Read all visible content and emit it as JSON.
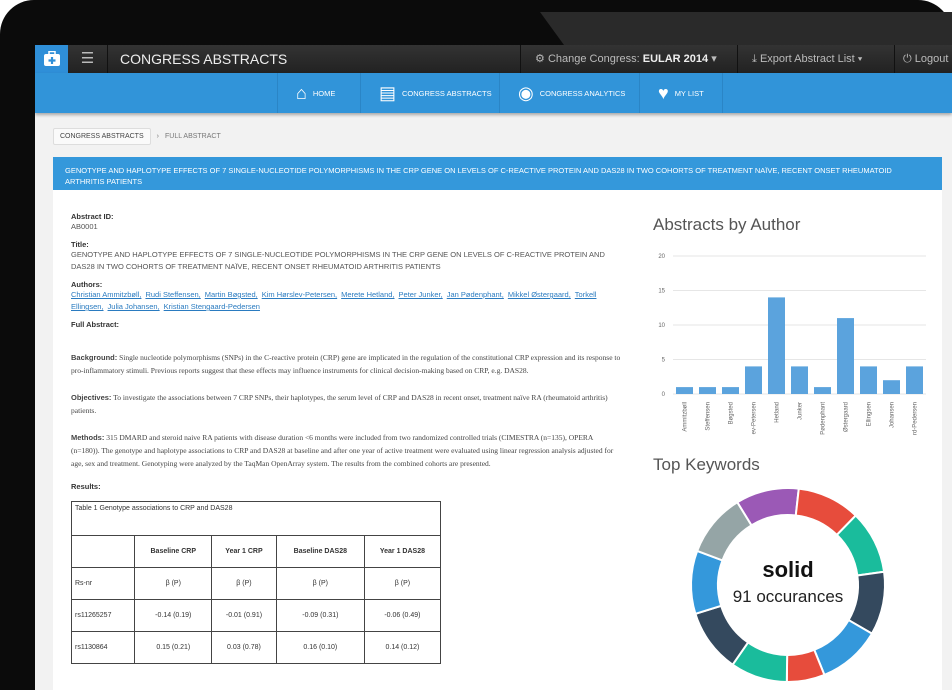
{
  "app": {
    "title": "CONGRESS ABSTRACTS",
    "change_congress_label": "Change Congress:",
    "congress": "EULAR 2014",
    "export": "Export Abstract List",
    "logout": "Logout"
  },
  "nav": [
    {
      "label": "HOME",
      "icon": "home-icon"
    },
    {
      "label": "CONGRESS ABSTRACTS",
      "icon": "document-icon"
    },
    {
      "label": "CONGRESS ANALYTICS",
      "icon": "dashboard-icon"
    },
    {
      "label": "MY LIST",
      "icon": "heart-icon"
    }
  ],
  "breadcrumb": [
    "CONGRESS ABSTRACTS",
    "FULL ABSTRACT"
  ],
  "abstract": {
    "heading": "GENOTYPE AND HAPLOTYPE EFFECTS OF 7 SINGLE-NUCLEOTIDE POLYMORPHISMS IN THE CRP GENE ON LEVELS OF C-REACTIVE PROTEIN AND DAS28 IN TWO COHORTS OF TREATMENT NAÏVE, RECENT ONSET RHEUMATOID ARTHRITIS PATIENTS",
    "id_label": "Abstract ID:",
    "id": "AB0001",
    "title_label": "Title:",
    "title": "GENOTYPE AND HAPLOTYPE EFFECTS OF 7 SINGLE-NUCLEOTIDE POLYMORPHISMS IN THE CRP GENE ON LEVELS OF C-REACTIVE PROTEIN AND DAS28 IN TWO COHORTS OF TREATMENT NAÏVE, RECENT ONSET RHEUMATOID ARTHRITIS PATIENTS",
    "authors_label": "Authors:",
    "authors": [
      "Christian Ammitzbøll,",
      "Rudi Steffensen,",
      "Martin Bøgsted,",
      "Kim Hørslev-Petersen,",
      "Merete Hetland,",
      "Peter Junker,",
      "Jan Pødenphant,",
      "Mikkel Østergaard,",
      "Torkell Ellingsen,",
      "Julia Johansen,",
      "Kristian Stengaard-Pedersen"
    ],
    "full_label": "Full Abstract:",
    "background_label": "Background:",
    "background": "Single nucleotide polymorphisms (SNPs) in the C-reactive protein (CRP) gene are implicated in the regulation of the constitutional CRP expression and its response to pro-inflammatory stimuli. Previous reports suggest that these effects may influence instruments for clinical decision-making based on CRP, e.g. DAS28.",
    "objectives_label": "Objectives:",
    "objectives": "To investigate the associations between 7 CRP SNPs, their haplotypes, the serum level of CRP and DAS28 in recent onset, treatment naïve RA (rheumatoid arthritis) patients.",
    "methods_label": "Methods:",
    "methods": "315 DMARD and steroid naive RA patients with disease duration <6 months were included from two randomized controlled trials (CIMESTRA (n=135), OPERA (n=180)). The genotype and haplotype associations to CRP and DAS28 at baseline and after one year of active treatment were evaluated using linear regression analysis adjusted for age, sex and treatment. Genotyping were analyzed by the TaqMan OpenArray system. The results from the combined cohorts are presented.",
    "results_label": "Results:",
    "table": {
      "caption": "Table 1 Genotype associations to CRP and DAS28",
      "headers": [
        "",
        "Baseline CRP",
        "Year 1 CRP",
        "Baseline DAS28",
        "Year 1 DAS28"
      ],
      "rows": [
        [
          "Rs-nr",
          "β (P)",
          "β (P)",
          "β (P)",
          "β (P)"
        ],
        [
          "rs11265257",
          "-0.14 (0.19)",
          "-0.01 (0.91)",
          "-0.09 (0.31)",
          "-0.06 (0.49)"
        ],
        [
          "rs1130864",
          "0.15 (0.21)",
          "0.03 (0.78)",
          "0.16 (0.10)",
          "0.14 (0.12)"
        ]
      ]
    }
  },
  "chart_data": [
    {
      "type": "bar",
      "title": "Abstracts by Author",
      "categories": [
        "Ammitzbøll",
        "Steffensen",
        "Bøgsted",
        "ev-Petersen",
        "Hetland",
        "Junker",
        "Pødenphant",
        "Østergaard",
        "Ellingsen",
        "Johansen",
        "rd-Pedersen"
      ],
      "values": [
        1,
        1,
        1,
        4,
        14,
        4,
        1,
        11,
        4,
        2,
        4
      ],
      "ylim": [
        0,
        20
      ],
      "yticks": [
        0,
        5,
        10,
        15,
        20
      ],
      "grid": true,
      "color": "#5ba3dd"
    },
    {
      "type": "pie",
      "title": "Top Keywords",
      "center_label": "solid",
      "center_sub": "91 occurances",
      "colors": [
        "#9b59b6",
        "#e74c3c",
        "#1abc9c",
        "#34495e",
        "#3498db",
        "#e74c3c",
        "#1abc9c",
        "#34495e",
        "#3498db",
        "#95a5a6"
      ],
      "values": [
        10,
        10,
        10,
        10,
        10,
        6,
        9,
        10,
        10,
        10
      ]
    }
  ]
}
